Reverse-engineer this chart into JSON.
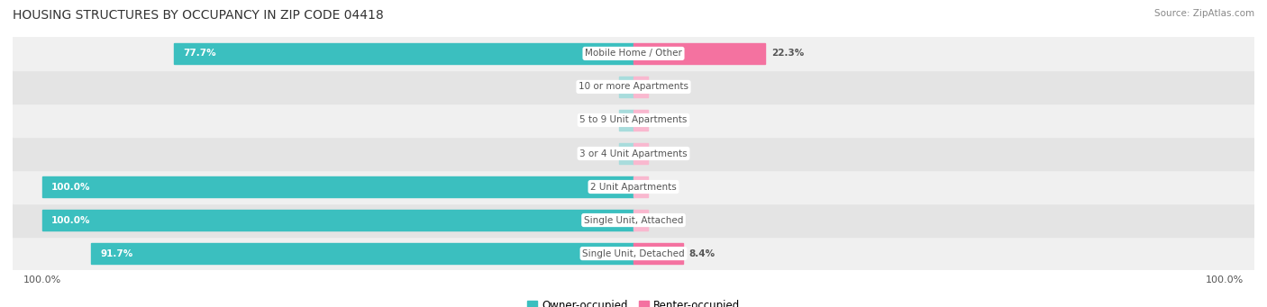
{
  "title": "HOUSING STRUCTURES BY OCCUPANCY IN ZIP CODE 04418",
  "source": "Source: ZipAtlas.com",
  "categories": [
    "Single Unit, Detached",
    "Single Unit, Attached",
    "2 Unit Apartments",
    "3 or 4 Unit Apartments",
    "5 to 9 Unit Apartments",
    "10 or more Apartments",
    "Mobile Home / Other"
  ],
  "owner_pct": [
    91.7,
    100.0,
    100.0,
    0.0,
    0.0,
    0.0,
    77.7
  ],
  "renter_pct": [
    8.4,
    0.0,
    0.0,
    0.0,
    0.0,
    0.0,
    22.3
  ],
  "owner_color": "#3BBFBF",
  "renter_color": "#F472A0",
  "owner_color_zero": "#A8DCDC",
  "renter_color_zero": "#F9B8CF",
  "row_bg_even": "#F0F0F0",
  "row_bg_odd": "#E4E4E4",
  "label_color": "#555555",
  "title_color": "#333333",
  "source_color": "#888888",
  "legend_owner": "Owner-occupied",
  "legend_renter": "Renter-occupied",
  "bar_height": 0.62,
  "figsize": [
    14.06,
    3.41
  ],
  "dpi": 100
}
